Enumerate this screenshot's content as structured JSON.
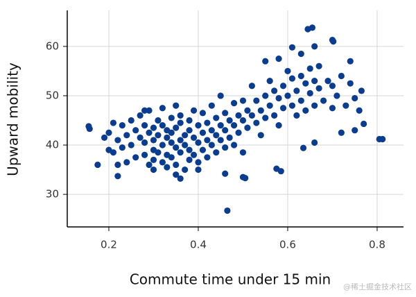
{
  "chart_data": {
    "type": "scatter",
    "xlabel": "Commute time under 15 min",
    "ylabel": "Upward mobility",
    "watermark": "@稀土掘金技术社区",
    "color": "#0b3d8c",
    "grid": true,
    "xlim": [
      0.107,
      0.859
    ],
    "ylim": [
      23.4,
      67.3
    ],
    "xticks": [
      0.2,
      0.4,
      0.6,
      0.8
    ],
    "yticks": [
      30,
      40,
      50,
      60
    ],
    "x": [
      0.155,
      0.157,
      0.175,
      0.19,
      0.2,
      0.2,
      0.21,
      0.21,
      0.22,
      0.22,
      0.23,
      0.23,
      0.24,
      0.24,
      0.25,
      0.25,
      0.26,
      0.26,
      0.27,
      0.27,
      0.28,
      0.28,
      0.28,
      0.29,
      0.29,
      0.29,
      0.3,
      0.3,
      0.3,
      0.3,
      0.31,
      0.31,
      0.31,
      0.32,
      0.32,
      0.32,
      0.32,
      0.33,
      0.33,
      0.33,
      0.33,
      0.34,
      0.34,
      0.34,
      0.34,
      0.35,
      0.35,
      0.35,
      0.35,
      0.36,
      0.36,
      0.36,
      0.36,
      0.37,
      0.37,
      0.37,
      0.38,
      0.38,
      0.38,
      0.38,
      0.39,
      0.39,
      0.39,
      0.4,
      0.4,
      0.4,
      0.41,
      0.41,
      0.41,
      0.42,
      0.42,
      0.42,
      0.43,
      0.43,
      0.43,
      0.44,
      0.44,
      0.44,
      0.45,
      0.45,
      0.45,
      0.46,
      0.46,
      0.46,
      0.47,
      0.47,
      0.48,
      0.48,
      0.48,
      0.49,
      0.49,
      0.5,
      0.5,
      0.5,
      0.51,
      0.51,
      0.52,
      0.52,
      0.53,
      0.53,
      0.54,
      0.54,
      0.55,
      0.55,
      0.56,
      0.56,
      0.57,
      0.57,
      0.58,
      0.58,
      0.59,
      0.59,
      0.6,
      0.6,
      0.61,
      0.61,
      0.62,
      0.62,
      0.63,
      0.63,
      0.64,
      0.64,
      0.65,
      0.65,
      0.66,
      0.66,
      0.67,
      0.67,
      0.68,
      0.69,
      0.7,
      0.7,
      0.71,
      0.72,
      0.73,
      0.74,
      0.75,
      0.76,
      0.465,
      0.5,
      0.505,
      0.575,
      0.585,
      0.22,
      0.36,
      0.46,
      0.635,
      0.66,
      0.805,
      0.812,
      0.645,
      0.655,
      0.7,
      0.702,
      0.61,
      0.66,
      0.63,
      0.74,
      0.765,
      0.77,
      0.75,
      0.72,
      0.3,
      0.35,
      0.4,
      0.55,
      0.58,
      0.28
    ],
    "y": [
      43.8,
      43.3,
      36,
      41.5,
      39,
      42.5,
      44.5,
      38.5,
      41,
      36,
      44,
      39.5,
      42,
      36.5,
      45,
      40,
      43,
      37.5,
      41.5,
      46,
      38,
      44,
      40.5,
      36,
      42.5,
      47,
      39,
      43.5,
      37,
      41,
      45,
      38.5,
      42,
      40,
      36.5,
      44,
      47.5,
      41.5,
      38,
      43,
      35.5,
      40.5,
      45.5,
      37.5,
      42.5,
      39.5,
      43.5,
      36,
      48,
      41,
      38.5,
      44.5,
      46,
      40,
      42,
      35,
      39,
      43,
      45,
      37,
      41.5,
      47,
      38,
      40.5,
      44,
      36.5,
      42.5,
      39,
      46.5,
      41,
      44.5,
      37.5,
      43,
      40,
      48,
      42,
      45.5,
      38.5,
      44,
      41,
      50,
      43,
      46.5,
      39.5,
      45,
      41.5,
      44,
      48.5,
      40,
      46,
      42.5,
      45,
      49,
      38.5,
      43.5,
      47,
      46,
      52,
      44.5,
      49,
      47,
      42,
      50,
      45.5,
      48,
      53,
      46,
      51,
      49.5,
      44,
      52,
      47.5,
      50,
      55,
      48,
      53.5,
      46,
      51,
      54,
      49,
      52.5,
      47,
      55.5,
      50.5,
      53,
      48,
      51.5,
      56,
      49,
      53,
      47.5,
      52,
      50,
      54,
      48,
      52.5,
      49.5,
      47,
      26.7,
      33.5,
      33.3,
      35.2,
      34.7,
      33.7,
      33.2,
      34.2,
      39.4,
      40.5,
      41.2,
      41.2,
      63.5,
      63.8,
      61.3,
      61,
      59.8,
      60,
      58.5,
      57,
      51,
      44.3,
      43,
      42.5,
      35,
      34,
      35,
      57,
      57.5,
      47
    ]
  }
}
